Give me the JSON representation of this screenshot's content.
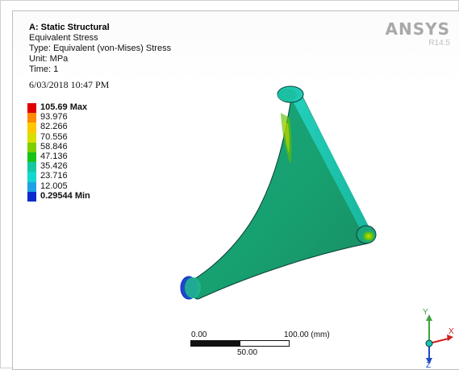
{
  "header": {
    "title": "A: Static Structural",
    "result": "Equivalent Stress",
    "type": "Type: Equivalent (von-Mises) Stress",
    "unit": "Unit: MPa",
    "time": "Time: 1",
    "date": "6/03/2018 10:47 PM"
  },
  "brand": {
    "name": "ANSYS",
    "version": "R14.5"
  },
  "legend": {
    "max_label": "105.69 Max",
    "min_label": "0.29544 Min",
    "items": [
      {
        "label": "105.69 Max",
        "color": "#e00000",
        "bold": true
      },
      {
        "label": "93.976",
        "color": "#ff8a00",
        "bold": false
      },
      {
        "label": "82.266",
        "color": "#ffc800",
        "bold": false
      },
      {
        "label": "70.556",
        "color": "#d9df00",
        "bold": false
      },
      {
        "label": "58.846",
        "color": "#7dcf00",
        "bold": false
      },
      {
        "label": "47.136",
        "color": "#19c31a",
        "bold": false
      },
      {
        "label": "35.426",
        "color": "#14c8a2",
        "bold": false
      },
      {
        "label": "23.716",
        "color": "#14d6d0",
        "bold": false
      },
      {
        "label": "12.005",
        "color": "#1ea2e6",
        "bold": false
      },
      {
        "label": "0.29544 Min",
        "color": "#0b2ccc",
        "bold": true
      }
    ]
  },
  "scale_bar": {
    "left_label": "0.00",
    "right_label": "100.00 (mm)",
    "mid_label": "50.00"
  },
  "triad": {
    "y_label": "Y",
    "x_label": "X",
    "z_label": "Z",
    "x_color": "#d11f1f",
    "y_color": "#3ea23e",
    "z_color": "#1f48c9"
  }
}
